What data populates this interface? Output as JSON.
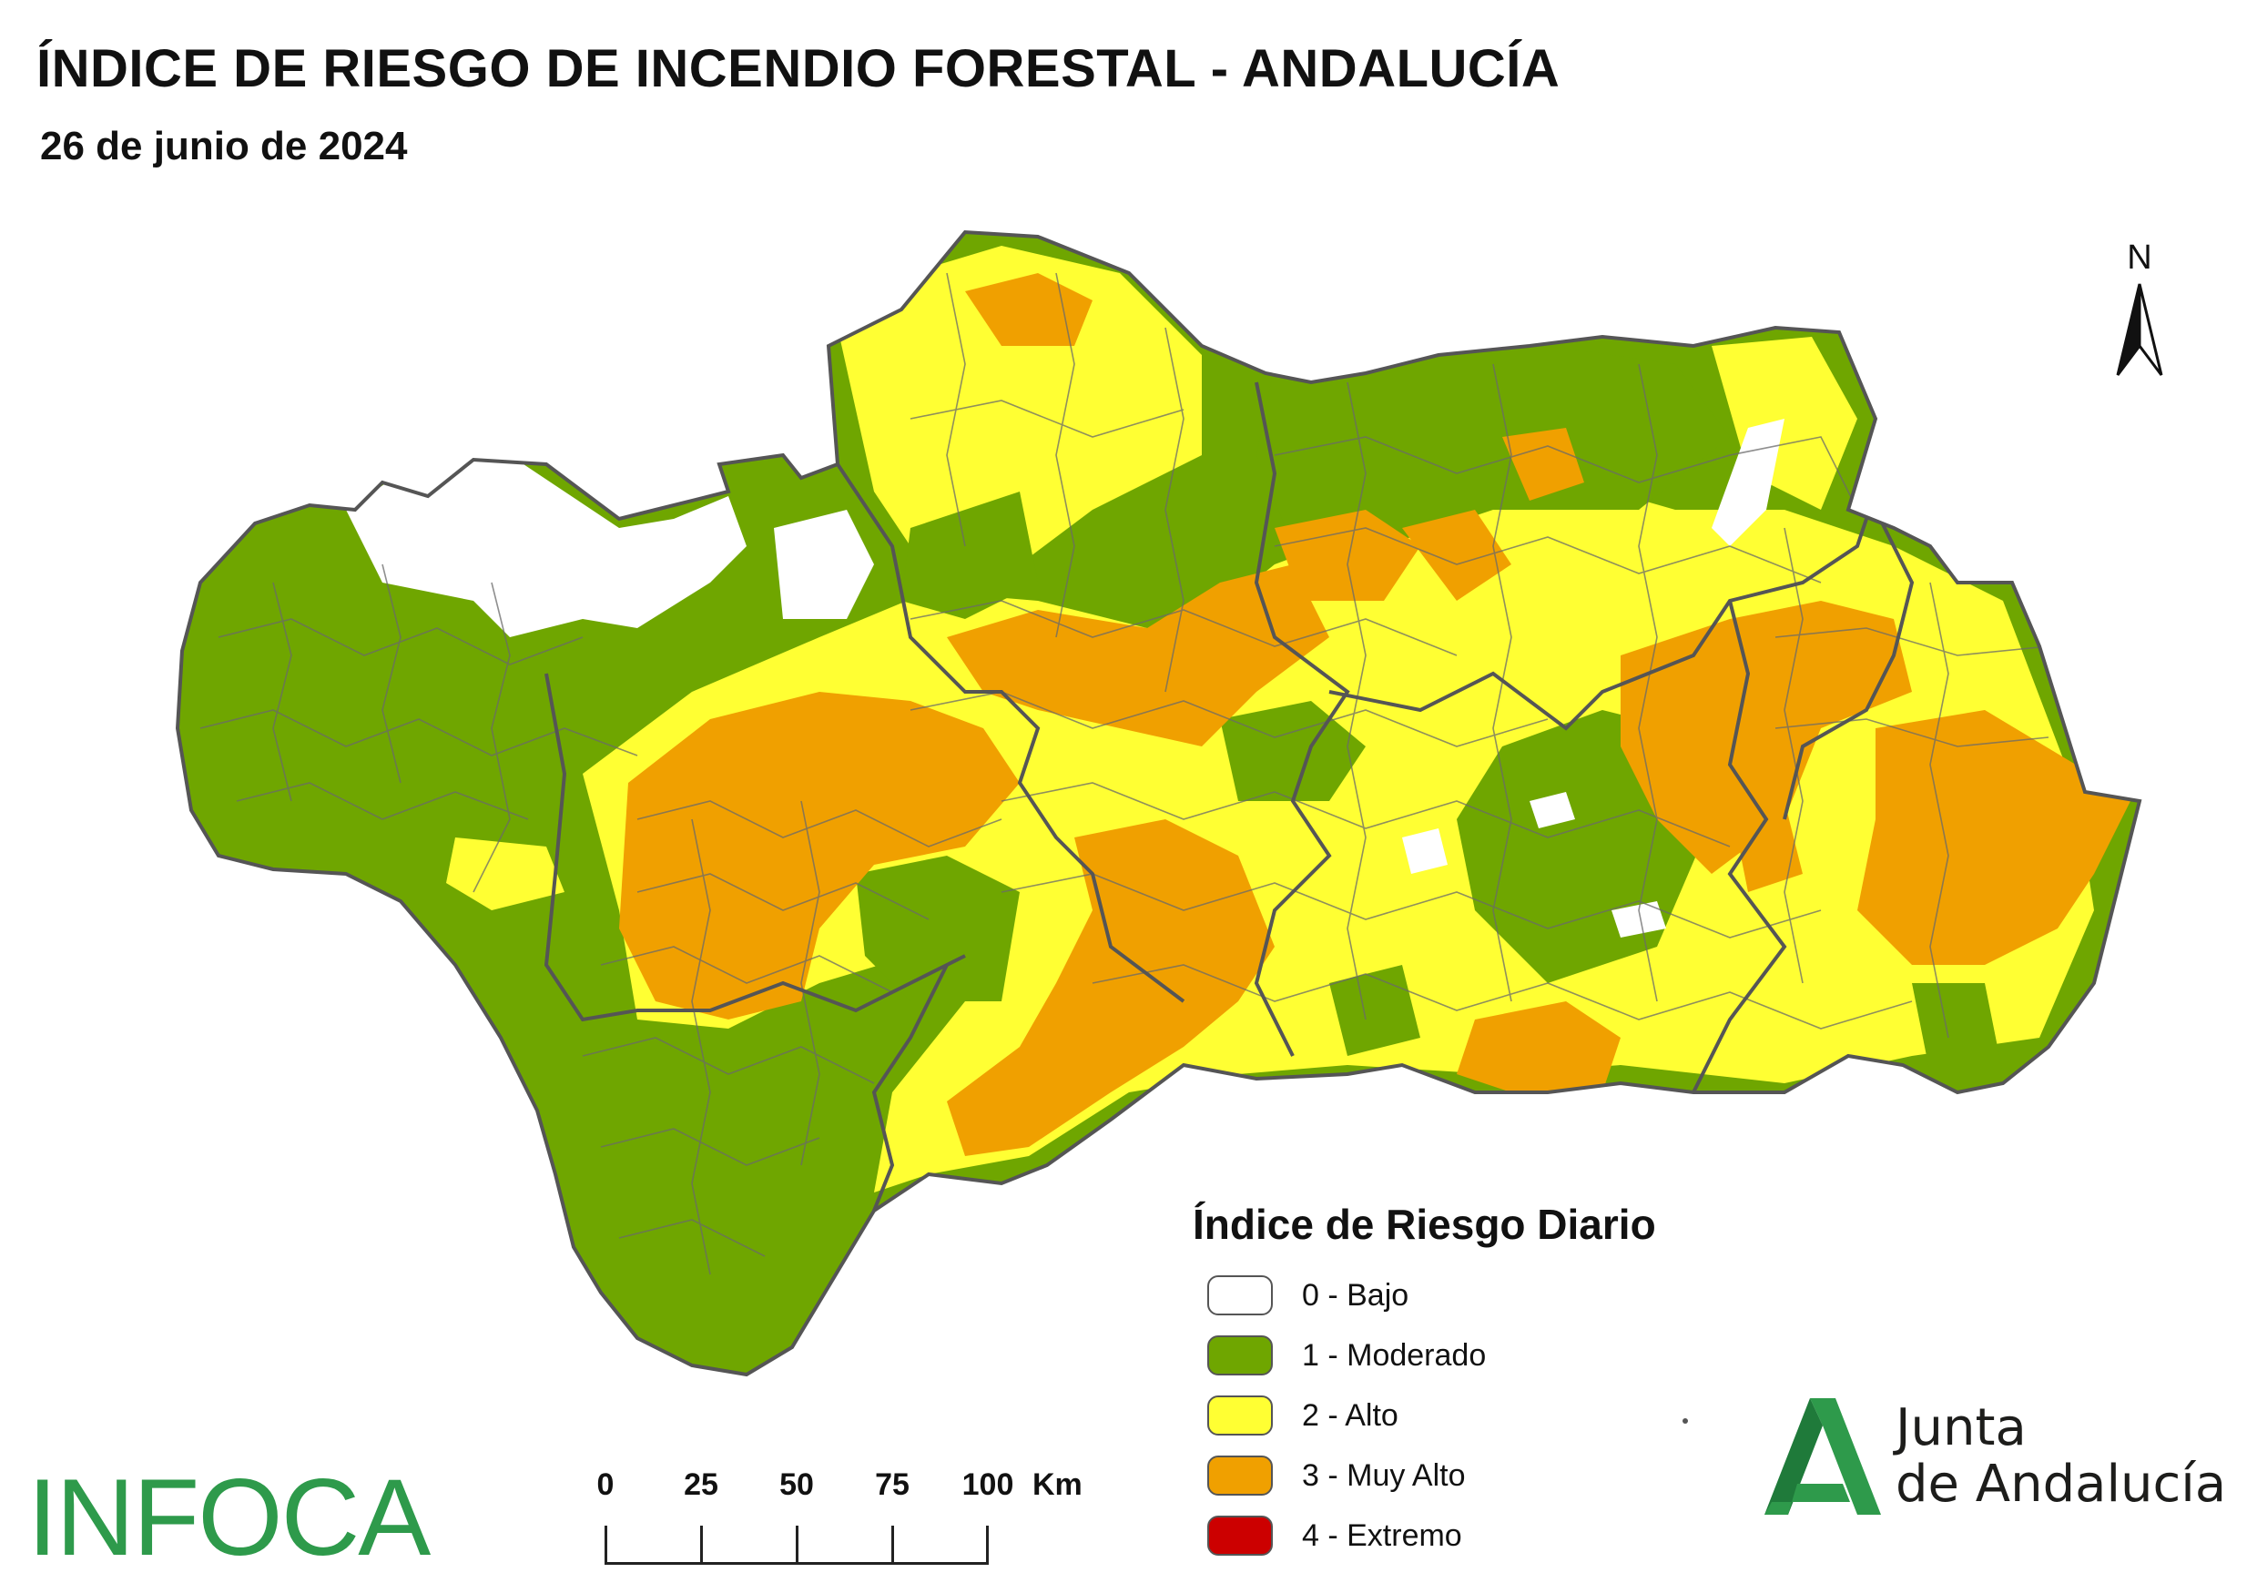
{
  "header": {
    "title": "ÍNDICE DE RIESGO DE INCENDIO FORESTAL - ANDALUCÍA",
    "date": "26 de junio de 2024"
  },
  "north_arrow": {
    "label": "N"
  },
  "legend": {
    "title": "Índice de Riesgo Diario",
    "items": [
      {
        "label": "0 - Bajo",
        "color": "#ffffff"
      },
      {
        "label": "1 - Moderado",
        "color": "#6fa600"
      },
      {
        "label": "2 - Alto",
        "color": "#ffff33"
      },
      {
        "label": "3 - Muy Alto",
        "color": "#f0a000"
      },
      {
        "label": "4 - Extremo",
        "color": "#cc0000"
      }
    ]
  },
  "scale_bar": {
    "labels": [
      "0",
      "25",
      "50",
      "75",
      "100"
    ],
    "unit": "Km"
  },
  "logos": {
    "infoca": "INFOCA",
    "junta_line1": "Junta",
    "junta_line2": "de Andalucía"
  },
  "colors": {
    "bajo": "#ffffff",
    "moderado": "#6fa600",
    "alto": "#ffff33",
    "muy_alto": "#f0a000",
    "border": "#5a5a5a",
    "brand_green": "#2e9a4b"
  }
}
